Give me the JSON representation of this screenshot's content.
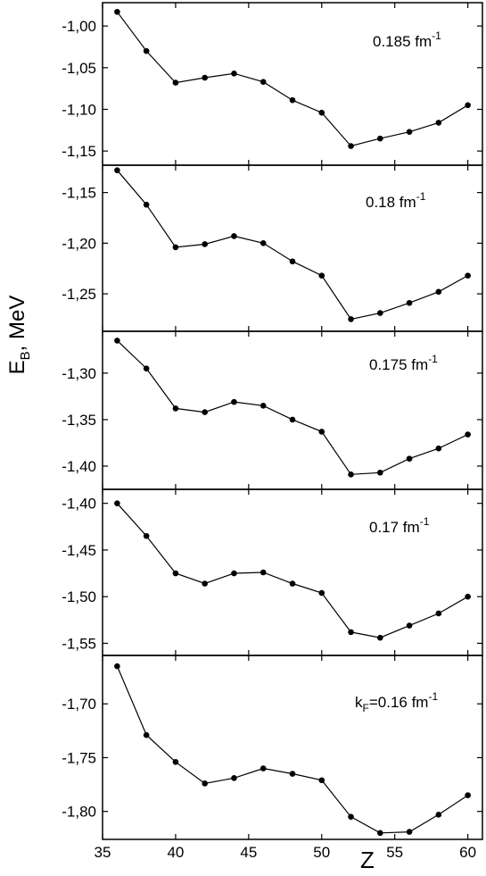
{
  "chart_data": {
    "type": "line",
    "xlabel": "Z",
    "ylabel": "E",
    "ylabel_sub": "B",
    "ylabel_rest": ", MeV",
    "xlim": [
      35,
      61
    ],
    "xticks": [
      35,
      40,
      45,
      50,
      55,
      60
    ],
    "x": [
      36,
      38,
      40,
      42,
      44,
      46,
      48,
      50,
      52,
      54,
      56,
      58,
      60
    ],
    "grid": false,
    "panels": [
      {
        "label_prefix": "",
        "label_sub": "",
        "label_main": "0.185 fm",
        "label_sup": "-1",
        "ylim": [
          -1.167,
          -0.972
        ],
        "yticks": [
          -1.15,
          -1.1,
          -1.05,
          -1.0
        ],
        "ytick_labels": [
          "-1,15",
          "-1,10",
          "-1,05",
          "-1,00"
        ],
        "values": [
          -0.983,
          -1.03,
          -1.068,
          -1.062,
          -1.057,
          -1.067,
          -1.089,
          -1.104,
          -1.144,
          -1.135,
          -1.127,
          -1.116,
          -1.095
        ]
      },
      {
        "label_prefix": "",
        "label_sub": "",
        "label_main": "0.18 fm",
        "label_sup": "-1",
        "ylim": [
          -1.287,
          -1.123
        ],
        "yticks": [
          -1.25,
          -1.2,
          -1.15
        ],
        "ytick_labels": [
          "-1,25",
          "-1,20",
          "-1,15"
        ],
        "values": [
          -1.128,
          -1.162,
          -1.204,
          -1.201,
          -1.193,
          -1.2,
          -1.218,
          -1.232,
          -1.275,
          -1.269,
          -1.259,
          -1.248,
          -1.232
        ]
      },
      {
        "label_prefix": "",
        "label_sub": "",
        "label_main": "0.175 fm",
        "label_sup": "-1",
        "ylim": [
          -1.425,
          -1.255
        ],
        "yticks": [
          -1.4,
          -1.35,
          -1.3
        ],
        "ytick_labels": [
          "-1,40",
          "-1,35",
          "-1,30"
        ],
        "values": [
          -1.265,
          -1.295,
          -1.338,
          -1.342,
          -1.331,
          -1.335,
          -1.35,
          -1.363,
          -1.409,
          -1.407,
          -1.392,
          -1.381,
          -1.366
        ]
      },
      {
        "label_prefix": "",
        "label_sub": "",
        "label_main": "0.17 fm",
        "label_sup": "-1",
        "ylim": [
          -1.563,
          -1.385
        ],
        "yticks": [
          -1.55,
          -1.5,
          -1.45,
          -1.4
        ],
        "ytick_labels": [
          "-1,55",
          "-1,50",
          "-1,45",
          "-1,40"
        ],
        "values": [
          -1.4,
          -1.435,
          -1.475,
          -1.486,
          -1.475,
          -1.474,
          -1.486,
          -1.496,
          -1.538,
          -1.544,
          -1.531,
          -1.518,
          -1.5
        ]
      },
      {
        "label_prefix": "k",
        "label_sub": "F",
        "label_main": "=0.16 fm",
        "label_sup": "-1",
        "ylim": [
          -1.826,
          -1.655
        ],
        "yticks": [
          -1.8,
          -1.75,
          -1.7
        ],
        "ytick_labels": [
          "-1,80",
          "-1,75",
          "-1,70"
        ],
        "values": [
          -1.665,
          -1.729,
          -1.754,
          -1.774,
          -1.769,
          -1.76,
          -1.765,
          -1.771,
          -1.805,
          -1.82,
          -1.819,
          -1.803,
          -1.785
        ]
      }
    ]
  }
}
